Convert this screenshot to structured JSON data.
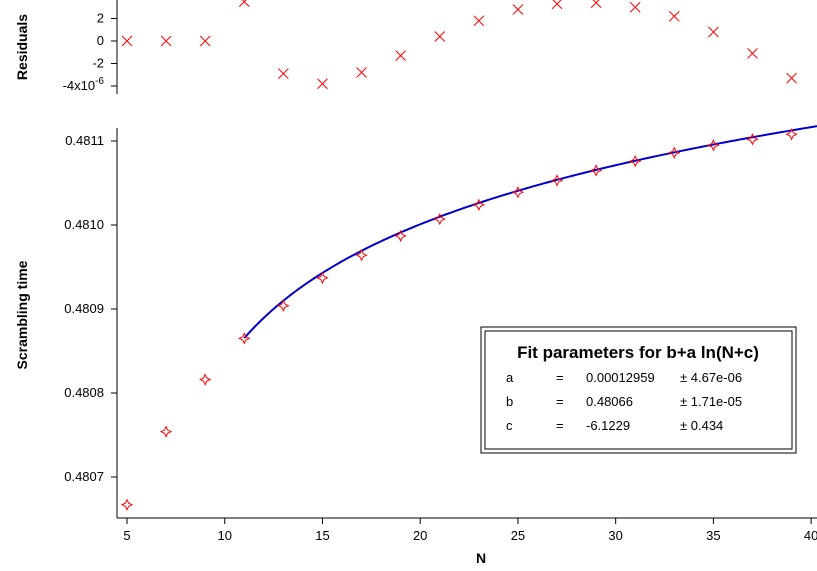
{
  "chart_data": [
    {
      "type": "scatter",
      "panel": "residuals",
      "ylabel": "Residuals",
      "ylim": [
        -5.2e-06,
        2.8e-06
      ],
      "xlim": [
        5,
        40.3
      ],
      "yticks": [
        {
          "value": 2e-06,
          "label": "2"
        },
        {
          "value": 0,
          "label": "0"
        },
        {
          "value": -2e-06,
          "label": "-2"
        },
        {
          "value": -4e-06,
          "label": "-4x10",
          "exponent": "-6"
        }
      ],
      "series": [
        {
          "marker": "x",
          "color": "#ff0000",
          "x": [
            5,
            7,
            9,
            11,
            13,
            15,
            17,
            19,
            21,
            23,
            25,
            27,
            29,
            31,
            33,
            35,
            37,
            39
          ],
          "y": [
            0,
            0,
            0,
            3.5e-06,
            -2.9e-06,
            -3.8e-06,
            -2.8e-06,
            -1.3e-06,
            4e-07,
            1.8e-06,
            2.8e-06,
            3.3e-06,
            3.4e-06,
            3e-06,
            2.2e-06,
            8e-07,
            -1.1e-06,
            -3.3e-06
          ]
        }
      ]
    },
    {
      "type": "scatter",
      "panel": "main",
      "xlabel": "N",
      "ylabel": "Scrambling time",
      "xlim": [
        5,
        40.3
      ],
      "ylim": [
        0.48066,
        0.48112
      ],
      "xticks": [
        5,
        10,
        15,
        20,
        25,
        30,
        35,
        40
      ],
      "xtick_labels": [
        "5",
        "10",
        "15",
        "20",
        "25",
        "30",
        "35",
        "40"
      ],
      "yticks": [
        0.4807,
        0.4808,
        0.4809,
        0.481,
        0.4811
      ],
      "ytick_labels": [
        "0.4807",
        "0.4808",
        "0.4809",
        "0.4810",
        "0.4811"
      ],
      "series": [
        {
          "marker": "diamond-star",
          "color": "#ff0000",
          "x": [
            5,
            7,
            9,
            11,
            13,
            15,
            17,
            19,
            21,
            23,
            25,
            27,
            29,
            31,
            33,
            35,
            37,
            39
          ],
          "y": [
            0.480667,
            0.480754,
            0.480816,
            0.480865,
            0.480904,
            0.480937,
            0.480964,
            0.480987,
            0.481007,
            0.481024,
            0.481039,
            0.481053,
            0.481065,
            0.481076,
            0.481086,
            0.481095,
            0.481102,
            0.481108
          ]
        }
      ],
      "fit": {
        "color": "#0000cc",
        "x_start": 11,
        "x_end": 40.3,
        "a": 0.00012959,
        "b": 0.48066,
        "c": -6.1229
      }
    }
  ],
  "fit_box": {
    "title": "Fit parameters for b+a ln(N+c)",
    "rows": [
      {
        "name": "a",
        "eq": "=",
        "value": "0.00012959",
        "error": "± 4.67e-06"
      },
      {
        "name": "b",
        "eq": "=",
        "value": "0.48066",
        "error": "± 1.71e-05"
      },
      {
        "name": "c",
        "eq": "=",
        "value": "-6.1229",
        "error": "± 0.434"
      }
    ]
  }
}
